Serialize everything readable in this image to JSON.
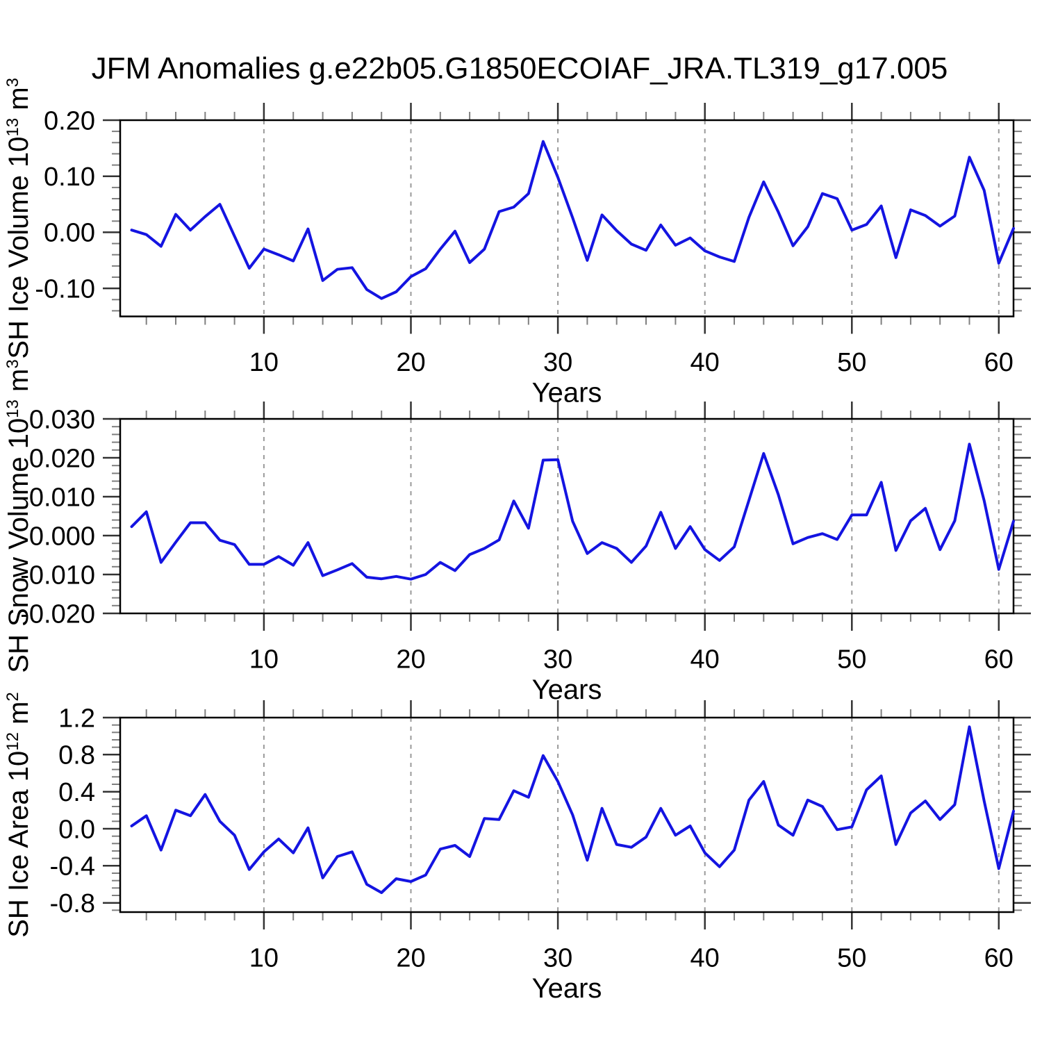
{
  "title": "JFM Anomalies g.e22b05.G1850ECOIAF_JRA.TL319_g17.005",
  "colors": {
    "line": "#1414e1",
    "axis": "#000000",
    "grid": "#9a9a9a"
  },
  "xlabel": "Years",
  "chart_data": [
    {
      "type": "line",
      "name": "sh-ice-volume",
      "ylabel": "SH Ice Volume 10¹³ m³",
      "ylabel_parts": [
        {
          "text": "SH Ice Volume 10"
        },
        {
          "text": "13",
          "sup": true
        },
        {
          "text": " m"
        },
        {
          "text": "3",
          "sup": true
        }
      ],
      "xlabel": "Years",
      "x_start": 1,
      "xlim": [
        0.22,
        61
      ],
      "xtick_major": [
        10,
        20,
        30,
        40,
        50,
        60
      ],
      "xtick_minor_step": 2,
      "ylim": [
        -0.15,
        0.2
      ],
      "ytick_major": [
        0.2,
        0.1,
        0.0,
        -0.1
      ],
      "ytick_labels": [
        "0.20",
        "0.10",
        "0.00",
        "-0.10"
      ],
      "ytick_minor_step": 0.02,
      "grid": "vertical-dashed-at-major-x",
      "legend": "none",
      "values": [
        0.004,
        -0.004,
        -0.025,
        0.032,
        0.004,
        0.028,
        0.05,
        -0.007,
        -0.064,
        -0.03,
        -0.04,
        -0.051,
        0.006,
        -0.086,
        -0.066,
        -0.063,
        -0.102,
        -0.118,
        -0.106,
        -0.079,
        -0.065,
        -0.03,
        0.002,
        -0.054,
        -0.03,
        0.037,
        0.045,
        0.069,
        0.162,
        0.098,
        0.026,
        -0.05,
        0.031,
        0.003,
        -0.021,
        -0.032,
        0.013,
        -0.023,
        -0.01,
        -0.033,
        -0.044,
        -0.052,
        0.027,
        0.09,
        0.036,
        -0.024,
        0.01,
        0.069,
        0.06,
        0.004,
        0.014,
        0.047,
        -0.045,
        0.04,
        0.03,
        0.011,
        0.029,
        0.134,
        0.075,
        -0.055,
        0.007
      ]
    },
    {
      "type": "line",
      "name": "sh-snow-volume",
      "ylabel": "SH Snow Volume 10¹³ m³",
      "ylabel_parts": [
        {
          "text": "SH Snow Volume 10"
        },
        {
          "text": "13",
          "sup": true
        },
        {
          "text": " m"
        },
        {
          "text": "3",
          "sup": true
        }
      ],
      "xlabel": "Years",
      "x_start": 1,
      "xlim": [
        0.22,
        61
      ],
      "xtick_major": [
        10,
        20,
        30,
        40,
        50,
        60
      ],
      "xtick_minor_step": 2,
      "ylim": [
        -0.02,
        0.03
      ],
      "ytick_major": [
        0.03,
        0.02,
        0.01,
        0.0,
        -0.01,
        -0.02
      ],
      "ytick_labels": [
        "0.030",
        "0.020",
        "0.010",
        "0.000",
        "-0.010",
        "-0.020"
      ],
      "ytick_minor_step": 0.002,
      "grid": "vertical-dashed-at-major-x",
      "legend": "none",
      "values": [
        0.0023,
        0.0061,
        -0.0069,
        -0.0017,
        0.0033,
        0.0033,
        -0.0012,
        -0.0023,
        -0.0074,
        -0.0074,
        -0.0054,
        -0.0076,
        -0.0018,
        -0.0103,
        -0.0088,
        -0.0072,
        -0.0107,
        -0.0111,
        -0.0105,
        -0.0112,
        -0.01,
        -0.0069,
        -0.009,
        -0.0049,
        -0.0033,
        -0.0011,
        0.0089,
        0.0019,
        0.0194,
        0.0195,
        0.0037,
        -0.0046,
        -0.0018,
        -0.0033,
        -0.0069,
        -0.0027,
        0.006,
        -0.0033,
        0.0023,
        -0.0036,
        -0.0064,
        -0.0029,
        0.0091,
        0.0211,
        0.0105,
        -0.0021,
        -0.0005,
        0.0005,
        -0.001,
        0.0053,
        0.0053,
        0.0137,
        -0.0038,
        0.0038,
        0.007,
        -0.0036,
        0.0038,
        0.0235,
        0.009,
        -0.0087,
        0.0037
      ]
    },
    {
      "type": "line",
      "name": "sh-ice-area",
      "ylabel": "SH Ice Area 10¹² m²",
      "ylabel_parts": [
        {
          "text": "SH Ice Area 10"
        },
        {
          "text": "12",
          "sup": true
        },
        {
          "text": " m"
        },
        {
          "text": "2",
          "sup": true
        }
      ],
      "xlabel": "Years",
      "x_start": 1,
      "xlim": [
        0.22,
        61
      ],
      "xtick_major": [
        10,
        20,
        30,
        40,
        50,
        60
      ],
      "xtick_minor_step": 2,
      "ylim": [
        -0.9,
        1.2
      ],
      "ytick_major": [
        1.2,
        0.8,
        0.4,
        0.0,
        -0.4,
        -0.8
      ],
      "ytick_labels": [
        "1.2",
        "0.8",
        "0.4",
        "0.0",
        "-0.4",
        "-0.8"
      ],
      "ytick_minor_step": 0.08,
      "grid": "vertical-dashed-at-major-x",
      "legend": "none",
      "values": [
        0.03,
        0.14,
        -0.23,
        0.2,
        0.14,
        0.37,
        0.08,
        -0.07,
        -0.44,
        -0.25,
        -0.11,
        -0.26,
        0.01,
        -0.53,
        -0.3,
        -0.25,
        -0.6,
        -0.69,
        -0.54,
        -0.57,
        -0.5,
        -0.22,
        -0.18,
        -0.3,
        0.11,
        0.1,
        0.41,
        0.34,
        0.79,
        0.51,
        0.15,
        -0.34,
        0.22,
        -0.17,
        -0.2,
        -0.09,
        0.22,
        -0.07,
        0.03,
        -0.26,
        -0.41,
        -0.23,
        0.31,
        0.51,
        0.04,
        -0.07,
        0.31,
        0.24,
        -0.01,
        0.02,
        0.42,
        0.57,
        -0.17,
        0.17,
        0.3,
        0.1,
        0.26,
        1.1,
        0.3,
        -0.43,
        0.19
      ]
    }
  ]
}
